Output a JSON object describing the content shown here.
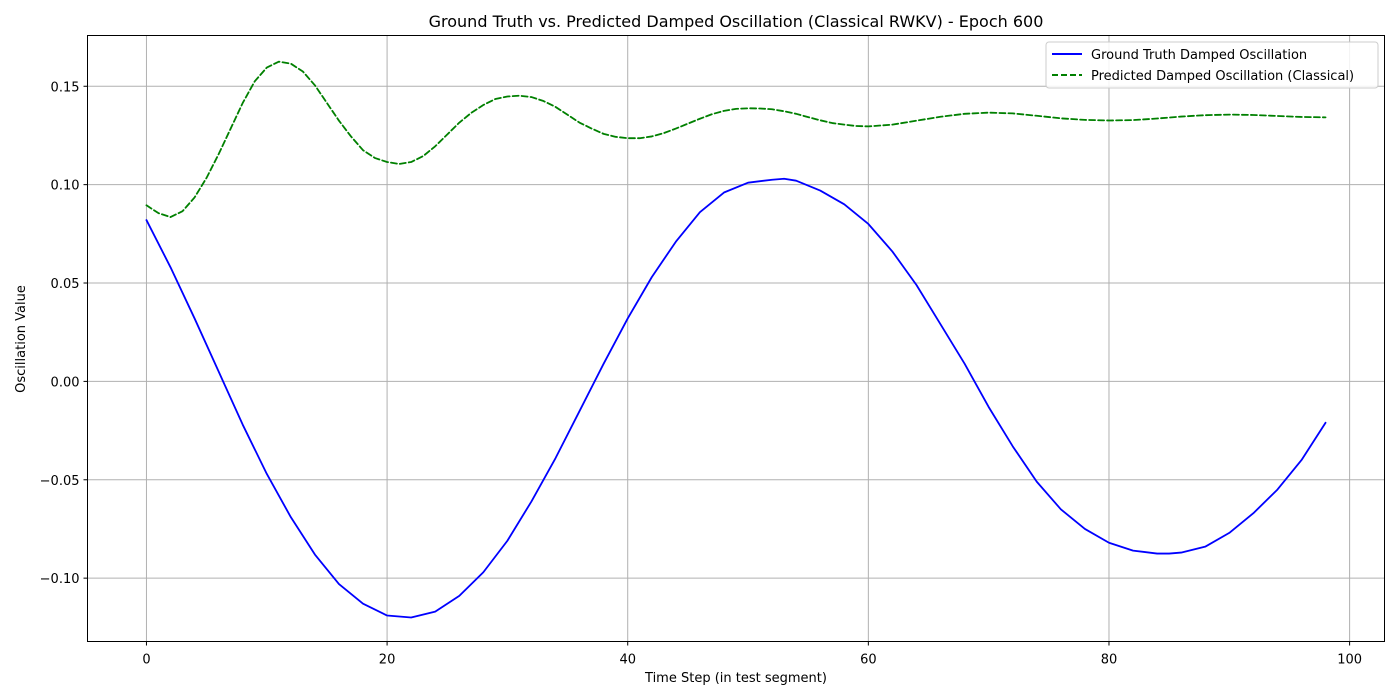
{
  "chart_data": {
    "type": "line",
    "title": "Ground Truth vs. Predicted Damped Oscillation (Classical RWKV) - Epoch 600",
    "xlabel": "Time Step (in test segment)",
    "ylabel": "Oscillation Value",
    "xlim": [
      -4.9,
      102.9
    ],
    "ylim": [
      -0.1322,
      0.1758
    ],
    "grid": true,
    "legend_position": "top-right",
    "x_ticks": [
      0,
      20,
      40,
      60,
      80,
      100
    ],
    "x_tick_labels": [
      "0",
      "20",
      "40",
      "60",
      "80",
      "100"
    ],
    "y_ticks": [
      -0.1,
      -0.05,
      0.0,
      0.05,
      0.1,
      0.15
    ],
    "y_tick_labels": [
      "−0.10",
      "−0.05",
      "0.00",
      "0.05",
      "0.10",
      "0.15"
    ],
    "series": [
      {
        "name": "Ground Truth Damped Oscillation",
        "color": "#0000ff",
        "line_style": "solid",
        "x": [
          0,
          2,
          4,
          6,
          8,
          10,
          12,
          14,
          16,
          18,
          20,
          22,
          24,
          26,
          28,
          30,
          32,
          34,
          36,
          38,
          40,
          42,
          44,
          46,
          48,
          50,
          52,
          53,
          54,
          56,
          58,
          60,
          62,
          64,
          66,
          68,
          70,
          72,
          74,
          76,
          78,
          80,
          82,
          84,
          85,
          86,
          88,
          90,
          92,
          94,
          96,
          98
        ],
        "y": [
          0.082,
          0.058,
          0.032,
          0.005,
          -0.022,
          -0.047,
          -0.069,
          -0.088,
          -0.103,
          -0.113,
          -0.119,
          -0.12,
          -0.117,
          -0.109,
          -0.097,
          -0.081,
          -0.061,
          -0.039,
          -0.015,
          0.009,
          0.032,
          0.053,
          0.071,
          0.086,
          0.096,
          0.101,
          0.1025,
          0.103,
          0.102,
          0.097,
          0.09,
          0.08,
          0.066,
          0.049,
          0.029,
          0.009,
          -0.013,
          -0.033,
          -0.051,
          -0.065,
          -0.075,
          -0.082,
          -0.086,
          -0.0875,
          -0.0875,
          -0.087,
          -0.084,
          -0.077,
          -0.067,
          -0.055,
          -0.04,
          -0.021
        ]
      },
      {
        "name": "Predicted Damped Oscillation (Classical)",
        "color": "#008000",
        "line_style": "dashed",
        "x": [
          0,
          1,
          2,
          3,
          4,
          5,
          6,
          7,
          8,
          9,
          10,
          11,
          12,
          13,
          14,
          15,
          16,
          17,
          18,
          19,
          20,
          21,
          22,
          23,
          24,
          25,
          26,
          27,
          28,
          29,
          30,
          31,
          32,
          33,
          34,
          35,
          36,
          37,
          38,
          39,
          40,
          41,
          42,
          43,
          44,
          45,
          46,
          47,
          48,
          49,
          50,
          51,
          52,
          53,
          54,
          55,
          56,
          57,
          58,
          59,
          60,
          62,
          64,
          66,
          68,
          70,
          72,
          74,
          76,
          78,
          80,
          82,
          84,
          86,
          88,
          90,
          92,
          94,
          96,
          98
        ],
        "y": [
          0.0895,
          0.0855,
          0.0835,
          0.0865,
          0.0935,
          0.1035,
          0.1155,
          0.1285,
          0.1415,
          0.1525,
          0.1595,
          0.1625,
          0.1615,
          0.1575,
          0.1505,
          0.1415,
          0.1325,
          0.1245,
          0.1175,
          0.1135,
          0.1115,
          0.1105,
          0.1115,
          0.1145,
          0.1195,
          0.1255,
          0.1315,
          0.1365,
          0.1405,
          0.1435,
          0.1448,
          0.1452,
          0.1445,
          0.1425,
          0.1395,
          0.1355,
          0.1315,
          0.1285,
          0.1258,
          0.1243,
          0.1236,
          0.1236,
          0.1245,
          0.1262,
          0.1285,
          0.131,
          0.1335,
          0.1358,
          0.1375,
          0.1385,
          0.1388,
          0.1387,
          0.1383,
          0.1373,
          0.136,
          0.1343,
          0.1327,
          0.1313,
          0.1305,
          0.1298,
          0.1296,
          0.1305,
          0.1325,
          0.1345,
          0.136,
          0.1366,
          0.1362,
          0.135,
          0.1337,
          0.1329,
          0.1326,
          0.1328,
          0.1336,
          0.1346,
          0.1353,
          0.1356,
          0.1354,
          0.1349,
          0.1344,
          0.1342
        ]
      }
    ]
  }
}
